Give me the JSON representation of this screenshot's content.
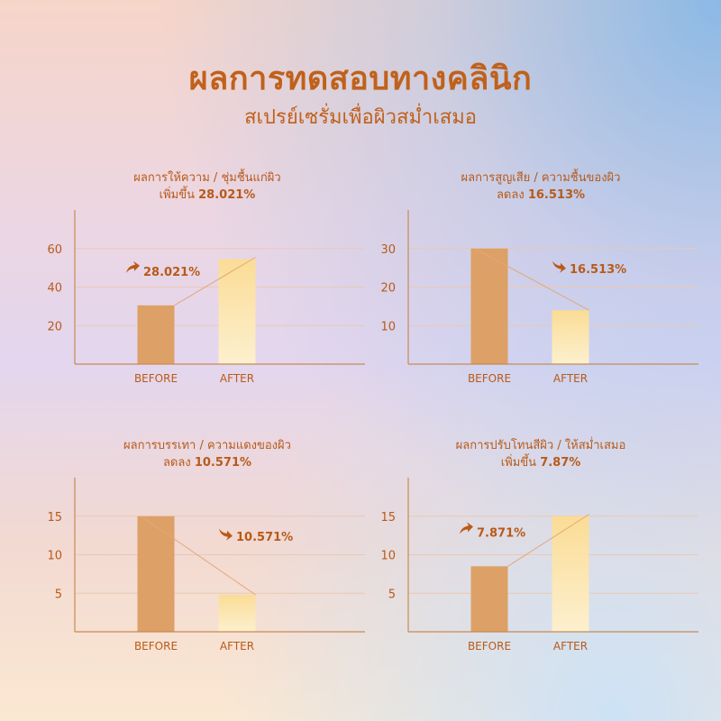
{
  "header": {
    "title": "ผลการทดสอบทางคลินิก",
    "subtitle": "สเปรย์เซรั่มเพื่อผิวสม่ำเสมอ"
  },
  "colors": {
    "accent": "#b85a18",
    "before_bar": "#dda066",
    "after_bar_top": "#fadc95",
    "after_bar_bottom": "#fdf0cf",
    "axis": "#c98a52",
    "grid": "#e9c9b4"
  },
  "chart_data": [
    {
      "type": "bar",
      "title": "ผลการให้ความ / ชุ่มชื้นแก่ผิว",
      "subtitle_prefix": "เพิ่มขึ้น",
      "subtitle_value": "28.021%",
      "categories": [
        "BEFORE",
        "AFTER"
      ],
      "values": [
        30.5,
        54.5
      ],
      "yticks": [
        20,
        40,
        60
      ],
      "ylim": [
        0,
        80
      ],
      "change_label": "28.021%",
      "direction": "up",
      "grid": true
    },
    {
      "type": "bar",
      "title": "ผลการสูญเสีย / ความชื้นของผิว",
      "subtitle_prefix": "ลดลง",
      "subtitle_value": "16.513%",
      "categories": [
        "BEFORE",
        "AFTER"
      ],
      "values": [
        30,
        14
      ],
      "yticks": [
        10,
        20,
        30
      ],
      "ylim": [
        0,
        40
      ],
      "change_label": "16.513%",
      "direction": "down",
      "grid": true
    },
    {
      "type": "bar",
      "title": "ผลการบรรเทา / ความแดงของผิว",
      "subtitle_prefix": "ลดลง",
      "subtitle_value": "10.571%",
      "categories": [
        "BEFORE",
        "AFTER"
      ],
      "values": [
        15,
        4.8
      ],
      "yticks": [
        5,
        10,
        15
      ],
      "ylim": [
        0,
        20
      ],
      "change_label": "10.571%",
      "direction": "down",
      "grid": true
    },
    {
      "type": "bar",
      "title": "ผลการปรับโทนสีผิว / ให้สม่ำเสมอ",
      "subtitle_prefix": "เพิ่มขึ้น",
      "subtitle_value": "7.87%",
      "categories": [
        "BEFORE",
        "AFTER"
      ],
      "values": [
        8.5,
        15
      ],
      "yticks": [
        5,
        10,
        15
      ],
      "ylim": [
        0,
        20
      ],
      "change_label": "7.871%",
      "direction": "up",
      "grid": true
    }
  ]
}
